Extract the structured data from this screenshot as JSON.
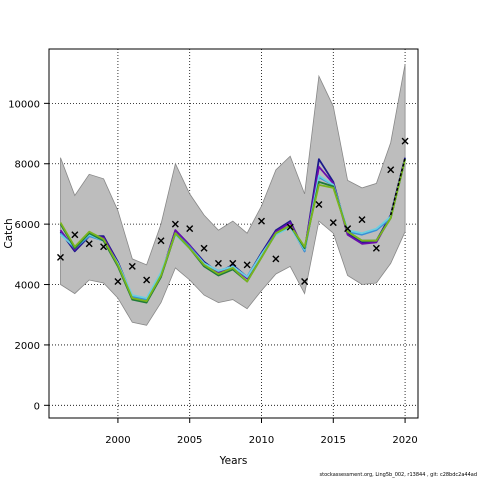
{
  "chart_data": {
    "type": "line",
    "xlabel": "Years",
    "ylabel": "Catch",
    "xlim": [
      1995.2,
      2020.9
    ],
    "ylim": [
      -420,
      11800
    ],
    "x_ticks": [
      2000,
      2005,
      2010,
      2015,
      2020
    ],
    "y_ticks": [
      0,
      2000,
      4000,
      6000,
      8000,
      10000
    ],
    "grid": true,
    "x": [
      1996,
      1997,
      1998,
      1999,
      2000,
      2001,
      2002,
      2003,
      2004,
      2005,
      2006,
      2007,
      2008,
      2009,
      2010,
      2011,
      2012,
      2013,
      2014,
      2015,
      2016,
      2017,
      2018,
      2019,
      2020
    ],
    "ci_band": {
      "upper": [
        8200,
        6950,
        7650,
        7500,
        6450,
        4850,
        4650,
        6000,
        8000,
        7000,
        6300,
        5800,
        6100,
        5700,
        6600,
        7800,
        8250,
        7000,
        10900,
        9900,
        7450,
        7200,
        7350,
        8700,
        11300
      ],
      "lower": [
        4000,
        3700,
        4150,
        4050,
        3550,
        2750,
        2650,
        3400,
        4550,
        4150,
        3650,
        3400,
        3500,
        3200,
        3800,
        4350,
        4600,
        3700,
        6100,
        5700,
        4300,
        4000,
        4050,
        4700,
        5750
      ]
    },
    "series": [
      {
        "color": "#1a1a8c",
        "values": [
          5750,
          5100,
          5600,
          5600,
          4750,
          3600,
          3450,
          4300,
          5800,
          5300,
          4750,
          4400,
          4650,
          4250,
          5050,
          5800,
          6100,
          5100,
          8150,
          7400,
          5700,
          5400,
          5450,
          6300,
          8200
        ]
      },
      {
        "color": "#6a0dad",
        "values": [
          5800,
          5150,
          5650,
          5550,
          4700,
          3550,
          3450,
          4300,
          5800,
          5300,
          4700,
          4400,
          4600,
          4200,
          5000,
          5750,
          6050,
          5150,
          7900,
          7350,
          5650,
          5350,
          5400,
          6250,
          8150
        ]
      },
      {
        "color": "#3a8fd6",
        "values": [
          5700,
          5200,
          5600,
          5450,
          4650,
          3600,
          3500,
          4350,
          5700,
          5250,
          4700,
          4450,
          4600,
          4250,
          5000,
          5700,
          5950,
          5100,
          7550,
          7300,
          5750,
          5650,
          5800,
          6200,
          8150
        ]
      },
      {
        "color": "#6ccfe0",
        "values": [
          5650,
          5250,
          5650,
          5450,
          4700,
          3650,
          3550,
          4400,
          5650,
          5200,
          4700,
          4450,
          4600,
          4250,
          5000,
          5650,
          5900,
          5150,
          7600,
          7300,
          5800,
          5700,
          5850,
          6250,
          8150
        ]
      },
      {
        "color": "#1f7a3a",
        "values": [
          6000,
          5200,
          5700,
          5450,
          4600,
          3500,
          3400,
          4250,
          5700,
          5200,
          4600,
          4300,
          4500,
          4100,
          4900,
          5700,
          5950,
          5200,
          7400,
          7250,
          5750,
          5450,
          5450,
          6200,
          8150
        ]
      },
      {
        "color": "#7ab51d",
        "values": [
          6050,
          5250,
          5750,
          5500,
          4650,
          3550,
          3450,
          4300,
          5700,
          5200,
          4650,
          4350,
          4550,
          4100,
          4900,
          5700,
          5950,
          5250,
          7300,
          7200,
          5750,
          5450,
          5450,
          6200,
          8150
        ]
      }
    ],
    "observed": {
      "marker": "x",
      "x": [
        1996,
        1997,
        1998,
        1999,
        2000,
        2001,
        2002,
        2003,
        2004,
        2005,
        2006,
        2007,
        2008,
        2009,
        2010,
        2011,
        2012,
        2013,
        2014,
        2015,
        2016,
        2017,
        2018,
        2019,
        2020
      ],
      "values": [
        4900,
        5650,
        5350,
        5250,
        4100,
        4600,
        4150,
        5450,
        6000,
        5850,
        5200,
        4700,
        4700,
        4650,
        6100,
        4850,
        5900,
        4100,
        6650,
        6050,
        5850,
        6150,
        5200,
        7800,
        8750
      ]
    }
  },
  "footer": "stockassessment.org,  Ling5b_002,  r13844 ,  git:  c28bdc2a44ad"
}
